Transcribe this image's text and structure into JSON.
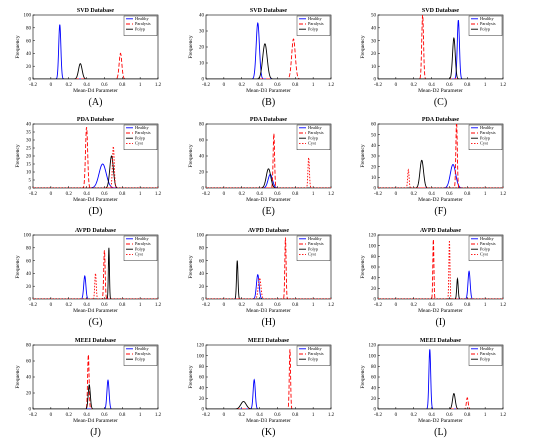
{
  "chart_data": [
    {
      "panel": "(A)",
      "type": "line",
      "title": "SVD Database",
      "xlabel": "Mean-D4 Parameter",
      "ylabel": "Frequency",
      "xlim": [
        -0.2,
        1.2
      ],
      "ylim": [
        0,
        100
      ],
      "xticks": [
        -0.2,
        0,
        0.2,
        0.4,
        0.6,
        0.8,
        1,
        1.2
      ],
      "yticks": [
        0,
        20,
        40,
        60,
        80,
        100
      ],
      "legend": [
        "Healthy",
        "Paralysis",
        "Polyp"
      ],
      "legend_position": "top-right",
      "series": [
        {
          "name": "Healthy",
          "peak_x": 0.1,
          "peak_y": 85,
          "width": 0.012
        },
        {
          "name": "Paralysis",
          "peak_x": 0.78,
          "peak_y": 40,
          "width": 0.015
        },
        {
          "name": "Polyp",
          "peak_x": 0.33,
          "peak_y": 24,
          "width": 0.02
        }
      ]
    },
    {
      "panel": "(B)",
      "type": "line",
      "title": "SVD Database",
      "xlabel": "Mean-D3 Parameter",
      "ylabel": "Frequency",
      "xlim": [
        -0.2,
        1.2
      ],
      "ylim": [
        0,
        40
      ],
      "xticks": [
        -0.2,
        0,
        0.2,
        0.4,
        0.6,
        0.8,
        1,
        1.2
      ],
      "yticks": [
        0,
        10,
        20,
        30,
        40
      ],
      "legend": [
        "Healthy",
        "Paralysis",
        "Polyp"
      ],
      "legend_position": "top-right",
      "series": [
        {
          "name": "Healthy",
          "peak_x": 0.38,
          "peak_y": 35,
          "width": 0.018
        },
        {
          "name": "Paralysis",
          "peak_x": 0.78,
          "peak_y": 25,
          "width": 0.02
        },
        {
          "name": "Polyp",
          "peak_x": 0.46,
          "peak_y": 22,
          "width": 0.025
        }
      ]
    },
    {
      "panel": "(C)",
      "type": "line",
      "title": "SVD Database",
      "xlabel": "Mean-D2 Parameter",
      "ylabel": "Frequency",
      "xlim": [
        -0.2,
        1.2
      ],
      "ylim": [
        0,
        50
      ],
      "xticks": [
        -0.2,
        0,
        0.2,
        0.4,
        0.6,
        0.8,
        1,
        1.2
      ],
      "yticks": [
        0,
        10,
        20,
        30,
        40,
        50
      ],
      "legend": [
        "Healthy",
        "Paralysis",
        "Polyp"
      ],
      "legend_position": "top-right",
      "series": [
        {
          "name": "Healthy",
          "peak_x": 0.7,
          "peak_y": 46,
          "width": 0.012
        },
        {
          "name": "Paralysis",
          "peak_x": 0.3,
          "peak_y": 50,
          "width": 0.01
        },
        {
          "name": "Polyp",
          "peak_x": 0.65,
          "peak_y": 32,
          "width": 0.015
        }
      ]
    },
    {
      "panel": "(D)",
      "type": "line",
      "title": "PDA Database",
      "xlabel": "Mean-D4 Parameter",
      "ylabel": "Frequency",
      "xlim": [
        -0.2,
        1.2
      ],
      "ylim": [
        0,
        40
      ],
      "xticks": [
        -0.2,
        0,
        0.2,
        0.4,
        0.6,
        0.8,
        1,
        1.2
      ],
      "yticks": [
        0,
        5,
        10,
        15,
        20,
        25,
        30,
        35,
        40
      ],
      "legend": [
        "Healthy",
        "Paralysis",
        "Polyp",
        "Cyst"
      ],
      "legend_position": "top-right",
      "series": [
        {
          "name": "Healthy",
          "peak_x": 0.58,
          "peak_y": 15,
          "width": 0.04
        },
        {
          "name": "Paralysis",
          "peak_x": 0.4,
          "peak_y": 38,
          "width": 0.012
        },
        {
          "name": "Polyp",
          "peak_x": 0.68,
          "peak_y": 20,
          "width": 0.02
        },
        {
          "name": "Cyst",
          "peak_x": 0.7,
          "peak_y": 26,
          "width": 0.01
        }
      ]
    },
    {
      "panel": "(E)",
      "type": "line",
      "title": "PDA Database",
      "xlabel": "Mean-D3 Parameter",
      "ylabel": "Frequency",
      "xlim": [
        -0.2,
        1.2
      ],
      "ylim": [
        0,
        80
      ],
      "xticks": [
        -0.2,
        0,
        0.2,
        0.4,
        0.6,
        0.8,
        1,
        1.2
      ],
      "yticks": [
        0,
        20,
        40,
        60,
        80
      ],
      "legend": [
        "Healthy",
        "Paralysis",
        "Polyp",
        "Cyst"
      ],
      "legend_position": "top-right",
      "series": [
        {
          "name": "Healthy",
          "peak_x": 0.52,
          "peak_y": 17,
          "width": 0.025
        },
        {
          "name": "Paralysis",
          "peak_x": 0.56,
          "peak_y": 68,
          "width": 0.008
        },
        {
          "name": "Polyp",
          "peak_x": 0.5,
          "peak_y": 24,
          "width": 0.025
        },
        {
          "name": "Cyst",
          "peak_x": 0.95,
          "peak_y": 38,
          "width": 0.008
        }
      ]
    },
    {
      "panel": "(F)",
      "type": "line",
      "title": "PDA Database",
      "xlabel": "Mean-D2 Parameter",
      "ylabel": "Frequency",
      "xlim": [
        -0.2,
        1.2
      ],
      "ylim": [
        0,
        60
      ],
      "xticks": [
        -0.2,
        0,
        0.2,
        0.4,
        0.6,
        0.8,
        1,
        1.2
      ],
      "yticks": [
        0,
        10,
        20,
        30,
        40,
        50,
        60
      ],
      "legend": [
        "Healthy",
        "Paralysis",
        "Polyp",
        "Cyst"
      ],
      "legend_position": "top-right",
      "series": [
        {
          "name": "Healthy",
          "peak_x": 0.64,
          "peak_y": 22,
          "width": 0.03
        },
        {
          "name": "Paralysis",
          "peak_x": 0.68,
          "peak_y": 62,
          "width": 0.008
        },
        {
          "name": "Polyp",
          "peak_x": 0.29,
          "peak_y": 26,
          "width": 0.02
        },
        {
          "name": "Cyst",
          "peak_x": 0.14,
          "peak_y": 17,
          "width": 0.008
        }
      ]
    },
    {
      "panel": "(G)",
      "type": "line",
      "title": "AVPD Database",
      "xlabel": "Mean-D4 Parameter",
      "ylabel": "Frequency",
      "xlim": [
        -0.2,
        1.2
      ],
      "ylim": [
        0,
        100
      ],
      "xticks": [
        -0.2,
        0,
        0.2,
        0.4,
        0.6,
        0.8,
        1,
        1.2
      ],
      "yticks": [
        0,
        20,
        40,
        60,
        80,
        100
      ],
      "legend": [
        "Healthy",
        "Paralysis",
        "Polyp",
        "Cyst"
      ],
      "legend_position": "top-right",
      "series": [
        {
          "name": "Healthy",
          "peak_x": 0.38,
          "peak_y": 36,
          "width": 0.012
        },
        {
          "name": "Paralysis",
          "peak_x": 0.6,
          "peak_y": 76,
          "width": 0.008
        },
        {
          "name": "Polyp",
          "peak_x": 0.65,
          "peak_y": 80,
          "width": 0.006
        },
        {
          "name": "Cyst",
          "peak_x": 0.5,
          "peak_y": 40,
          "width": 0.008
        }
      ]
    },
    {
      "panel": "(H)",
      "type": "line",
      "title": "AVPD Database",
      "xlabel": "Mean-D3 Parameter",
      "ylabel": "Frequency",
      "xlim": [
        -0.2,
        1.2
      ],
      "ylim": [
        0,
        100
      ],
      "xticks": [
        -0.2,
        0,
        0.2,
        0.4,
        0.6,
        0.8,
        1,
        1.2
      ],
      "yticks": [
        0,
        20,
        40,
        60,
        80,
        100
      ],
      "legend": [
        "Healthy",
        "Paralysis",
        "Polyp",
        "Cyst"
      ],
      "legend_position": "top-right",
      "series": [
        {
          "name": "Healthy",
          "peak_x": 0.38,
          "peak_y": 38,
          "width": 0.015
        },
        {
          "name": "Paralysis",
          "peak_x": 0.69,
          "peak_y": 96,
          "width": 0.007
        },
        {
          "name": "Polyp",
          "peak_x": 0.15,
          "peak_y": 60,
          "width": 0.008
        },
        {
          "name": "Cyst",
          "peak_x": 0.4,
          "peak_y": 33,
          "width": 0.015
        }
      ]
    },
    {
      "panel": "(I)",
      "type": "line",
      "title": "AVPD Database",
      "xlabel": "Mean-D2 Parameter",
      "ylabel": "Frequency",
      "xlim": [
        -0.2,
        1.2
      ],
      "ylim": [
        0,
        120
      ],
      "xticks": [
        -0.2,
        0,
        0.2,
        0.4,
        0.6,
        0.8,
        1,
        1.2
      ],
      "yticks": [
        0,
        20,
        40,
        60,
        80,
        100,
        120
      ],
      "legend": [
        "Healthy",
        "Paralysis",
        "Polyp",
        "Cyst"
      ],
      "legend_position": "top-right",
      "series": [
        {
          "name": "Healthy",
          "peak_x": 0.82,
          "peak_y": 52,
          "width": 0.012
        },
        {
          "name": "Paralysis",
          "peak_x": 0.42,
          "peak_y": 112,
          "width": 0.006
        },
        {
          "name": "Polyp",
          "peak_x": 0.69,
          "peak_y": 38,
          "width": 0.008
        },
        {
          "name": "Cyst",
          "peak_x": 0.6,
          "peak_y": 110,
          "width": 0.006
        }
      ]
    },
    {
      "panel": "(J)",
      "type": "line",
      "title": "MEEI Database",
      "xlabel": "Mean-D4 Parameter",
      "ylabel": "Frequency",
      "xlim": [
        -0.2,
        1.2
      ],
      "ylim": [
        0,
        80
      ],
      "xticks": [
        -0.2,
        0,
        0.2,
        0.4,
        0.6,
        0.8,
        1,
        1.2
      ],
      "yticks": [
        0,
        20,
        40,
        60,
        80
      ],
      "legend": [
        "Healthy",
        "Paralysis",
        "Polyp"
      ],
      "legend_position": "top-right",
      "series": [
        {
          "name": "Healthy",
          "peak_x": 0.64,
          "peak_y": 36,
          "width": 0.012
        },
        {
          "name": "Paralysis",
          "peak_x": 0.42,
          "peak_y": 68,
          "width": 0.008
        },
        {
          "name": "Polyp",
          "peak_x": 0.43,
          "peak_y": 30,
          "width": 0.012
        }
      ]
    },
    {
      "panel": "(K)",
      "type": "line",
      "title": "MEEI Database",
      "xlabel": "Mean-D3 Parameter",
      "ylabel": "Frequency",
      "xlim": [
        -0.2,
        1.2
      ],
      "ylim": [
        0,
        120
      ],
      "xticks": [
        -0.2,
        0,
        0.2,
        0.4,
        0.6,
        0.8,
        1,
        1.2
      ],
      "yticks": [
        0,
        20,
        40,
        60,
        80,
        100,
        120
      ],
      "legend": [
        "Healthy",
        "Paralysis",
        "Polyp"
      ],
      "legend_position": "top-right",
      "series": [
        {
          "name": "Healthy",
          "peak_x": 0.34,
          "peak_y": 55,
          "width": 0.012
        },
        {
          "name": "Paralysis",
          "peak_x": 0.74,
          "peak_y": 112,
          "width": 0.007
        },
        {
          "name": "Polyp",
          "peak_x": 0.22,
          "peak_y": 14,
          "width": 0.03
        }
      ]
    },
    {
      "panel": "(L)",
      "type": "line",
      "title": "MEEI Database",
      "xlabel": "Mean-D2 Parameter",
      "ylabel": "Frequency",
      "xlim": [
        -0.2,
        1.2
      ],
      "ylim": [
        0,
        120
      ],
      "xticks": [
        -0.2,
        0,
        0.2,
        0.4,
        0.6,
        0.8,
        1,
        1.2
      ],
      "yticks": [
        0,
        20,
        40,
        60,
        80,
        100,
        120
      ],
      "legend": [
        "Healthy",
        "Paralysis",
        "Polyp"
      ],
      "legend_position": "top-right",
      "series": [
        {
          "name": "Healthy",
          "peak_x": 0.38,
          "peak_y": 112,
          "width": 0.01
        },
        {
          "name": "Paralysis",
          "peak_x": 0.8,
          "peak_y": 21,
          "width": 0.01
        },
        {
          "name": "Polyp",
          "peak_x": 0.65,
          "peak_y": 29,
          "width": 0.015
        }
      ]
    }
  ],
  "series_styles": {
    "Healthy": {
      "color": "#0000ff",
      "dash": "solid"
    },
    "Paralysis": {
      "color": "#ff0000",
      "dash": "dashed"
    },
    "Polyp": {
      "color": "#000000",
      "dash": "solid"
    },
    "Cyst": {
      "color": "#ff0000",
      "dash": "dotted"
    }
  }
}
